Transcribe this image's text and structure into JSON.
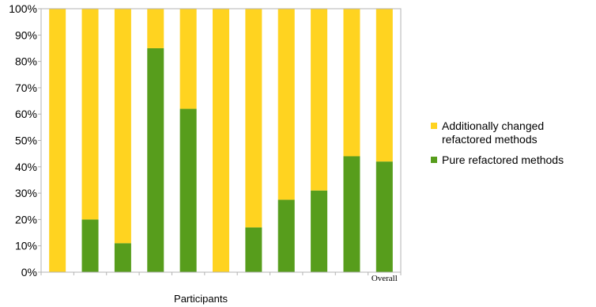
{
  "chart_data": {
    "type": "bar",
    "stacked": true,
    "categories": [
      "",
      "",
      "",
      "",
      "",
      "",
      "",
      "",
      "",
      "",
      "Overall"
    ],
    "series": [
      {
        "name": "Pure refactored methods",
        "values": [
          0,
          20,
          11,
          85,
          62,
          0,
          17,
          27.5,
          31,
          44,
          42
        ],
        "color": "#579d1c"
      },
      {
        "name": "Additionally changed refactored methods",
        "values": [
          100,
          80,
          89,
          15,
          38,
          100,
          83,
          72.5,
          69,
          56,
          58
        ],
        "color": "#ffd320"
      }
    ],
    "xlabel": "Participants",
    "ylabel": "",
    "ylim": [
      0,
      100
    ],
    "yticks": [
      "0%",
      "10%",
      "20%",
      "30%",
      "40%",
      "50%",
      "60%",
      "70%",
      "80%",
      "90%",
      "100%"
    ],
    "grid": false,
    "legend": {
      "position": "right",
      "entries": [
        {
          "lines": [
            "Additionally changed",
            "refactored methods"
          ],
          "color": "#ffd320"
        },
        {
          "lines": [
            "Pure refactored methods"
          ],
          "color": "#579d1c"
        }
      ]
    }
  }
}
